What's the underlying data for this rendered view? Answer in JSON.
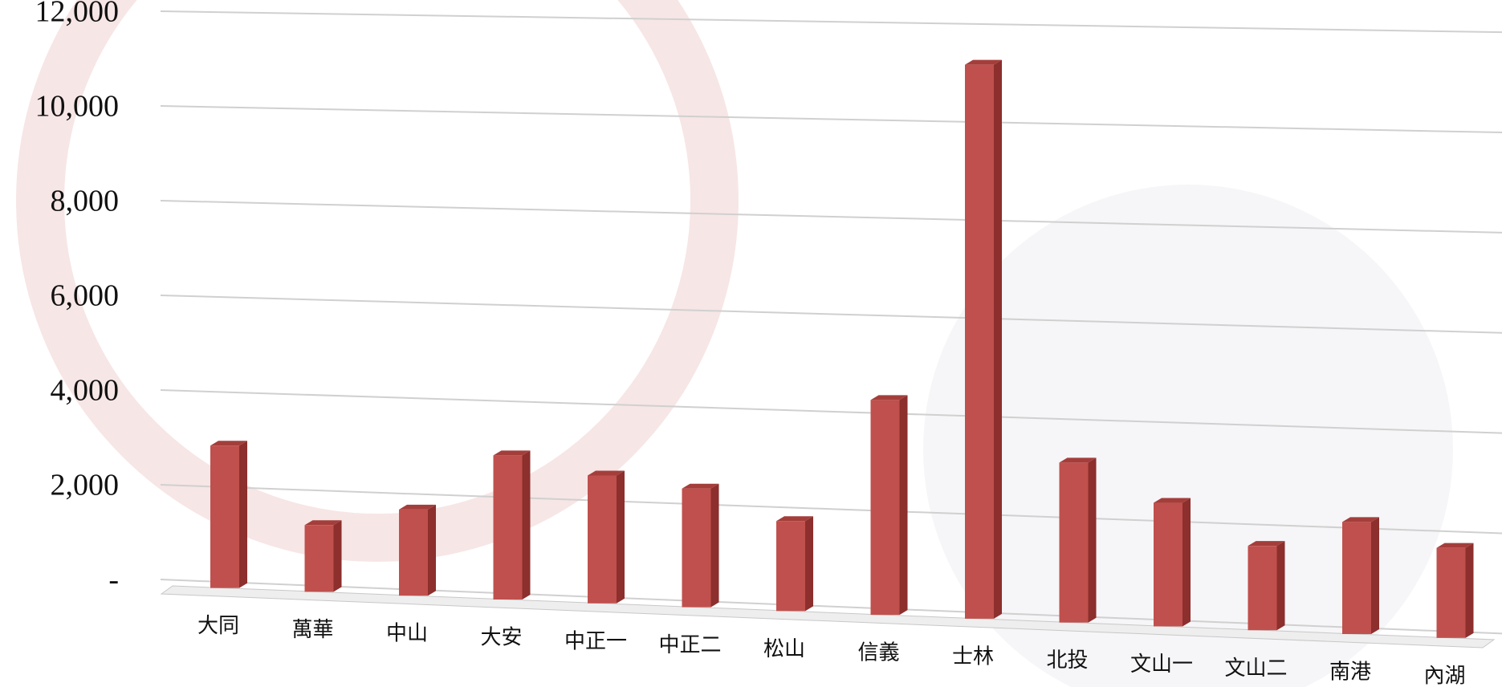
{
  "chart_data": {
    "type": "bar",
    "categories": [
      "大同",
      "萬華",
      "中山",
      "大安",
      "中正一",
      "中正二",
      "松山",
      "信義",
      "士林",
      "北投",
      "文山一",
      "文山二",
      "南港",
      "內湖"
    ],
    "values": [
      3000,
      1400,
      1800,
      3000,
      2650,
      2450,
      1850,
      4400,
      11300,
      3250,
      2500,
      1700,
      2250,
      1800
    ],
    "color": "#c0504d",
    "ylim": [
      0,
      12000
    ],
    "yticks": [
      {
        "value": 0,
        "label": "-"
      },
      {
        "value": 2000,
        "label": "2,000"
      },
      {
        "value": 4000,
        "label": "4,000"
      },
      {
        "value": 6000,
        "label": "6,000"
      },
      {
        "value": 8000,
        "label": "8,000"
      },
      {
        "value": 10000,
        "label": "10,000"
      },
      {
        "value": 12000,
        "label": "12,000"
      }
    ],
    "grid": true
  }
}
